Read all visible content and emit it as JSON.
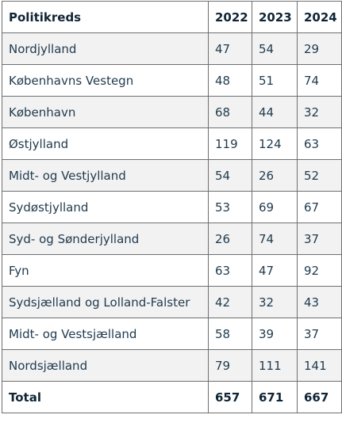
{
  "table": {
    "headers": [
      "Politikreds",
      "2022",
      "2023",
      "2024"
    ],
    "rows": [
      [
        "Nordjylland",
        "47",
        "54",
        "29"
      ],
      [
        "Københavns Vestegn",
        "48",
        "51",
        "74"
      ],
      [
        "København",
        "68",
        "44",
        "32"
      ],
      [
        "Østjylland",
        "119",
        "124",
        "63"
      ],
      [
        "Midt- og Vestjylland",
        "54",
        "26",
        "52"
      ],
      [
        "Sydøstjylland",
        "53",
        "69",
        "67"
      ],
      [
        "Syd- og Sønderjylland",
        "26",
        "74",
        "37"
      ],
      [
        "Fyn",
        "63",
        "47",
        "92"
      ],
      [
        "Sydsjælland og Lolland-Falster",
        "42",
        "32",
        "43"
      ],
      [
        "Midt- og Vestsjælland",
        "58",
        "39",
        "37"
      ],
      [
        "Nordsjælland",
        "79",
        "111",
        "141"
      ]
    ],
    "total": [
      "Total",
      "657",
      "671",
      "667"
    ]
  },
  "colors": {
    "text": "#1f3a4d",
    "border": "#6f6f6f",
    "shaded_row": "#f2f2f2"
  }
}
